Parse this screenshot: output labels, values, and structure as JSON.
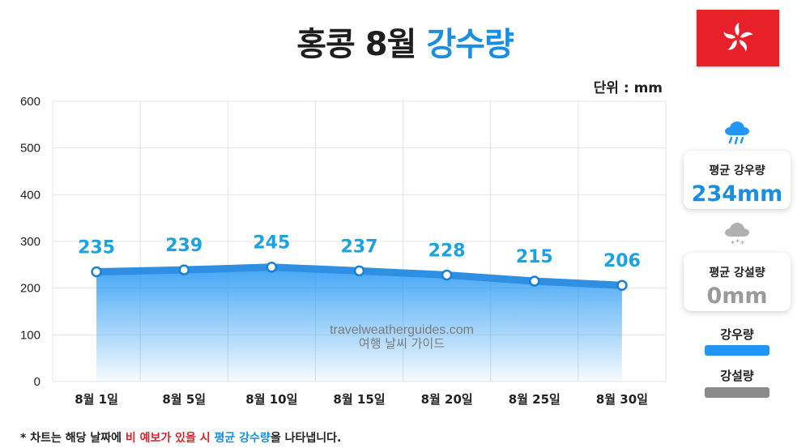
{
  "title": {
    "main": "홍콩 8월",
    "accent": "강수량"
  },
  "unit_label": "단위 : mm",
  "watermark": {
    "url": "travelweatherguides.com",
    "name": "여행 날씨 가이드"
  },
  "side": {
    "rain_card": {
      "label": "평균 강우량",
      "value": "234mm"
    },
    "snow_card": {
      "label": "평균 강설량",
      "value": "0mm"
    },
    "legend": [
      {
        "label": "강우량",
        "color": "#2196f3"
      },
      {
        "label": "강설량",
        "color": "#8a8a8a"
      }
    ]
  },
  "footnote": {
    "prefix": "* 차트는 해당 날짜에 ",
    "red": "비 예보가 있을 시",
    "mid": " ",
    "blue": "평균 강수량",
    "suffix": "을 나타냅니다."
  },
  "colors": {
    "accent": "#1a8ee0",
    "line": "#2f8fe3",
    "label": "#1aa3e0",
    "flag": "#e8202a"
  },
  "chart_data": {
    "type": "area",
    "categories": [
      "8월 1일",
      "8월 5일",
      "8월 10일",
      "8월 15일",
      "8월 20일",
      "8월 25일",
      "8월 30일"
    ],
    "series": [
      {
        "name": "강우량",
        "values": [
          235,
          239,
          245,
          237,
          228,
          215,
          206
        ]
      }
    ],
    "ylim": [
      0,
      600
    ],
    "yticks": [
      0,
      100,
      200,
      300,
      400,
      500,
      600
    ],
    "unit": "mm",
    "grid": true
  }
}
